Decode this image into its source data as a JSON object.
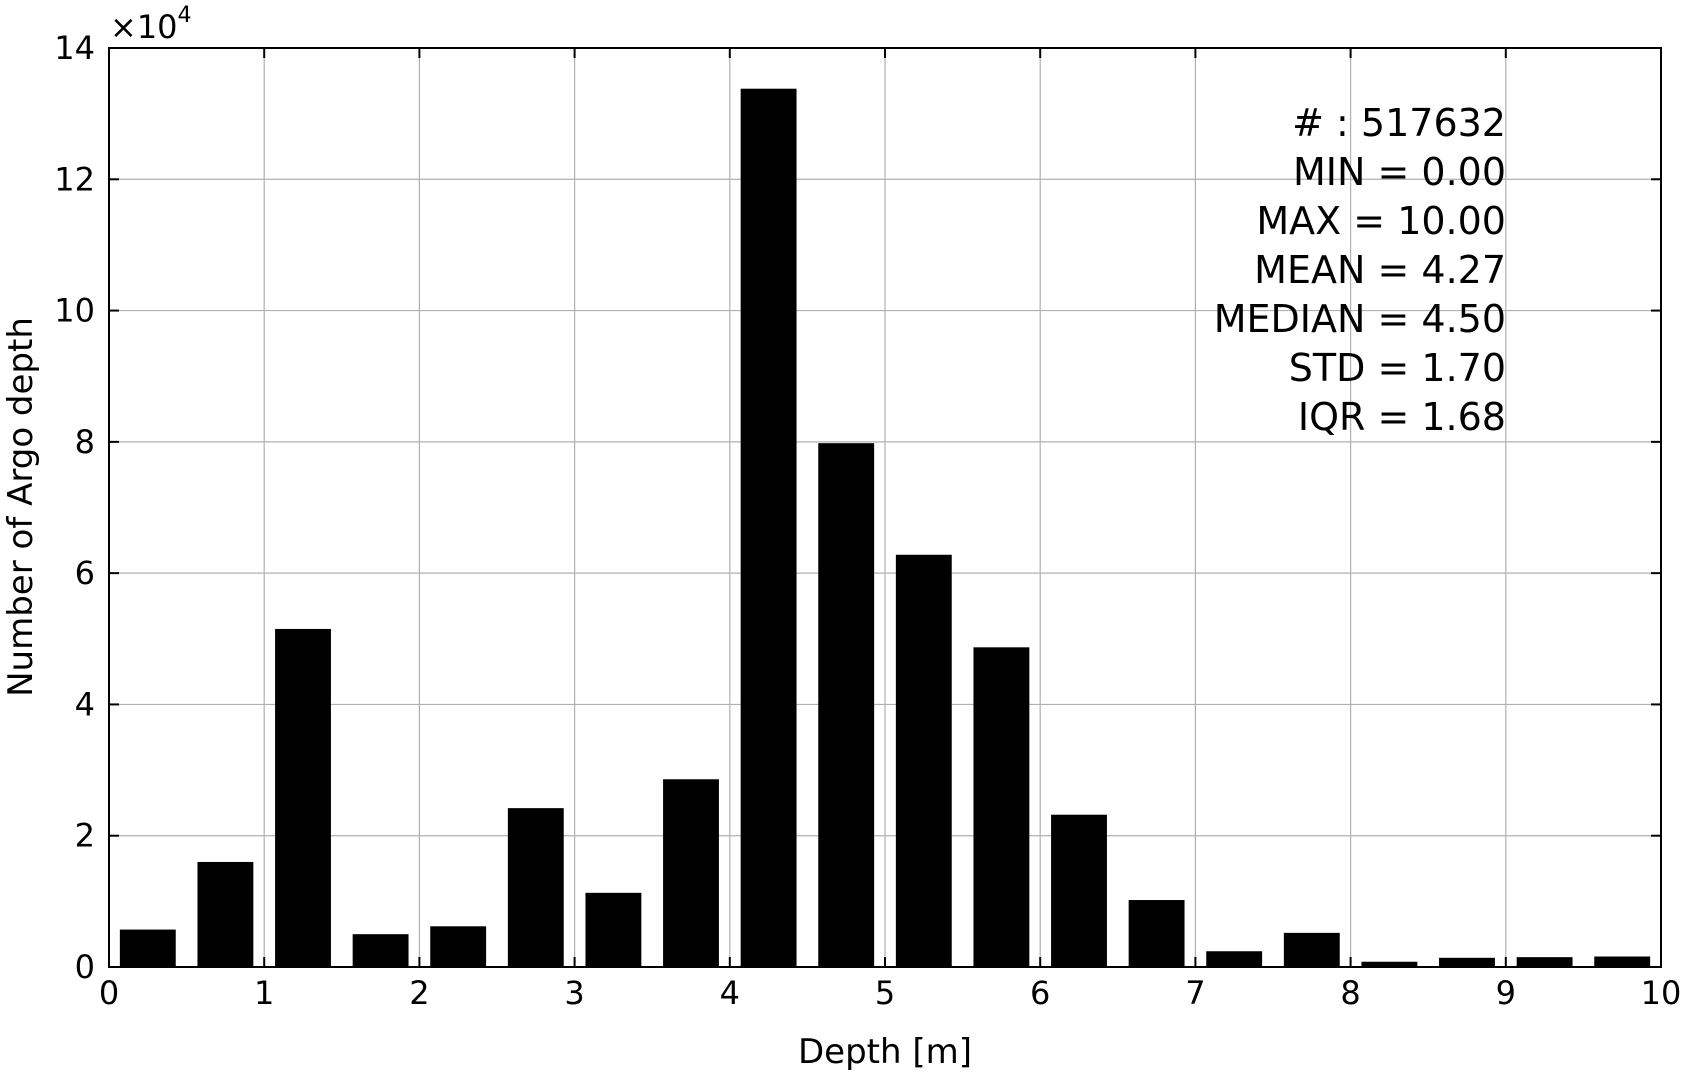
{
  "chart_data": {
    "type": "bar",
    "xlabel": "Depth [m]",
    "ylabel": "Number of Argo depth",
    "y_multiplier_label": "×10",
    "y_multiplier_exponent": "4",
    "xlim": [
      0,
      10
    ],
    "ylim": [
      0,
      14
    ],
    "y_scale_factor": 10000,
    "grid": true,
    "x_ticks": [
      "0",
      "1",
      "2",
      "3",
      "4",
      "5",
      "6",
      "7",
      "8",
      "9",
      "10"
    ],
    "y_ticks": [
      "0",
      "2",
      "4",
      "6",
      "8",
      "10",
      "12",
      "14"
    ],
    "bin_centers": [
      0.25,
      0.75,
      1.25,
      1.75,
      2.25,
      2.75,
      3.25,
      3.75,
      4.25,
      4.75,
      5.25,
      5.75,
      6.25,
      6.75,
      7.25,
      7.75,
      8.25,
      8.75,
      9.25,
      9.75
    ],
    "bar_width": 0.36,
    "values": [
      0.57,
      1.6,
      5.15,
      0.5,
      0.62,
      2.42,
      1.13,
      2.86,
      13.38,
      7.98,
      6.28,
      4.87,
      2.32,
      1.02,
      0.24,
      0.52,
      0.08,
      0.14,
      0.15,
      0.16
    ],
    "bar_color": "#000000",
    "stats": [
      "# : 517632",
      "MIN = 0.00",
      "MAX =  10.00",
      "MEAN = 4.27",
      "MEDIAN = 4.50",
      "STD = 1.70",
      "IQR = 1.68"
    ]
  }
}
